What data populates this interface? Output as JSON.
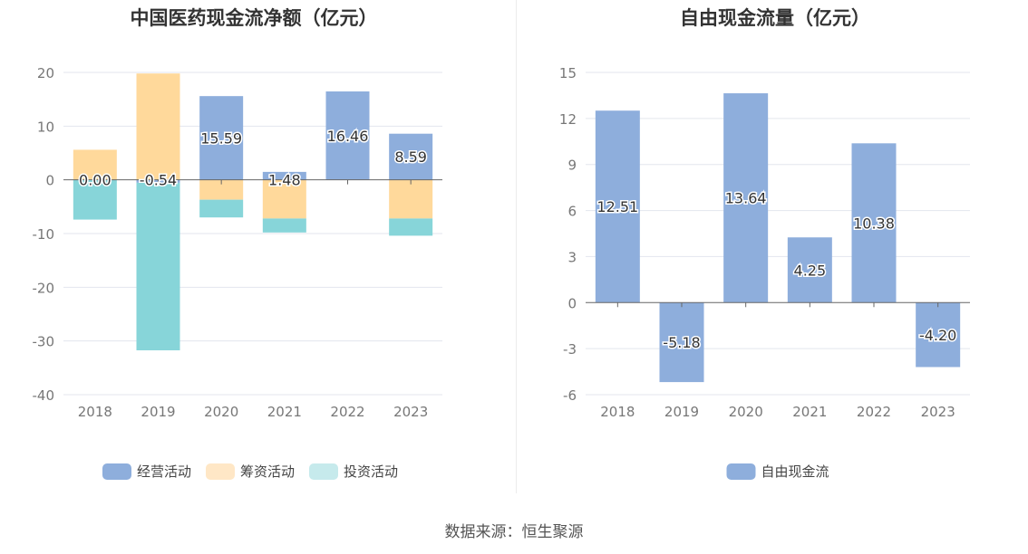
{
  "source_label": "数据来源：恒生聚源",
  "chart_data": [
    {
      "type": "bar",
      "stacked": true,
      "title": "中国医药现金流净额（亿元）",
      "categories": [
        "2018",
        "2019",
        "2020",
        "2021",
        "2022",
        "2023"
      ],
      "ylim": [
        -40,
        20
      ],
      "yticks": [
        20,
        10,
        0,
        -10,
        -20,
        -30,
        -40
      ],
      "grid": true,
      "legend_position": "bottom-center",
      "series": [
        {
          "name": "经营活动",
          "color": "#8eaedc",
          "values": [
            0.0,
            -0.54,
            15.59,
            1.48,
            16.46,
            8.59
          ]
        },
        {
          "name": "筹资活动",
          "color": "#ffd99b",
          "values": [
            5.6,
            19.8,
            -3.7,
            -7.2,
            0,
            -7.2
          ]
        },
        {
          "name": "投资活动",
          "color": "#87d5d9",
          "values": [
            -7.4,
            -31.2,
            -3.3,
            -2.6,
            0,
            -3.2
          ]
        }
      ],
      "legend_colors": [
        "#8eaedc",
        "#ffe7c6",
        "#c6eaec"
      ],
      "data_labels": [
        "0.00",
        "-0.54",
        "15.59",
        "1.48",
        "16.46",
        "8.59"
      ]
    },
    {
      "type": "bar",
      "title": "自由现金流量（亿元）",
      "categories": [
        "2018",
        "2019",
        "2020",
        "2021",
        "2022",
        "2023"
      ],
      "ylim": [
        -6,
        15
      ],
      "yticks": [
        15,
        12,
        9,
        6,
        3,
        0,
        -3,
        -6
      ],
      "grid": true,
      "legend_position": "bottom-center",
      "series": [
        {
          "name": "自由现金流",
          "color": "#8eaedc",
          "values": [
            12.51,
            -5.18,
            13.64,
            4.25,
            10.38,
            -4.2
          ]
        }
      ],
      "data_labels": [
        "12.51",
        "-5.18",
        "13.64",
        "4.25",
        "10.38",
        "-4.20"
      ]
    }
  ]
}
